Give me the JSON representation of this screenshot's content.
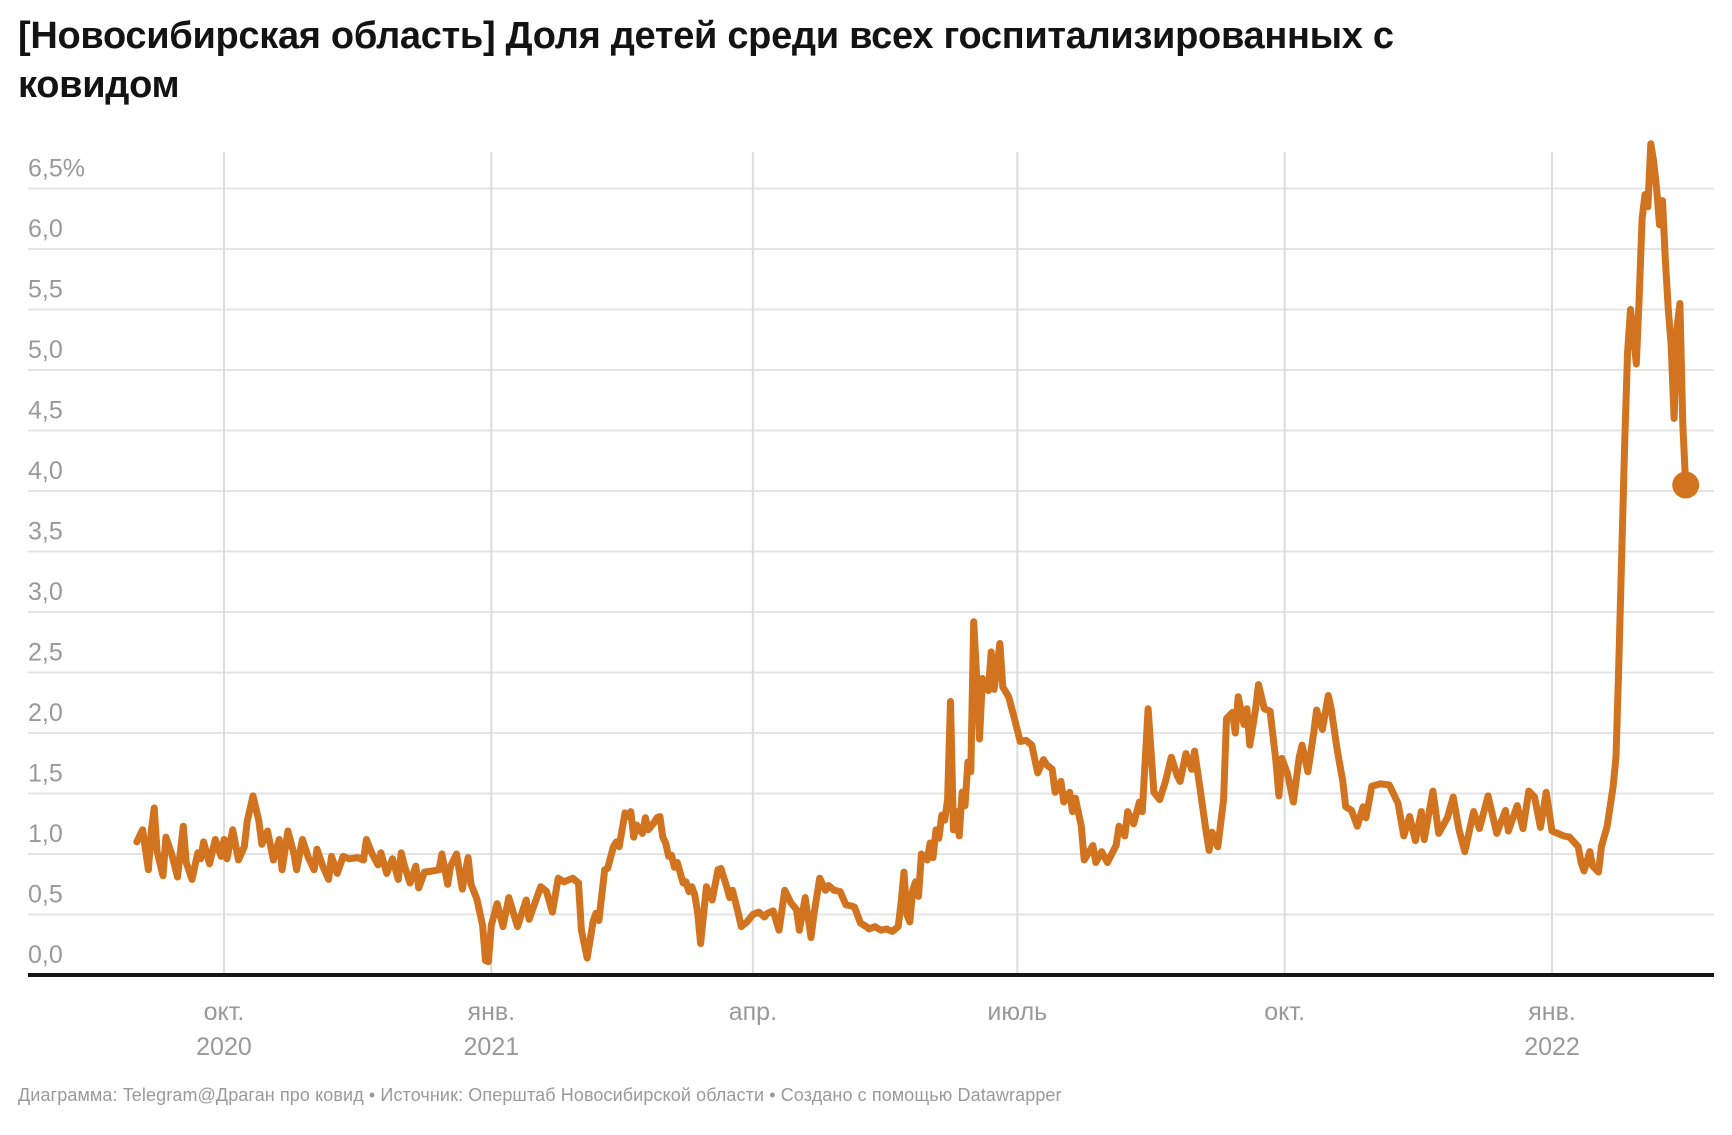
{
  "header": {
    "title": "[Новосибирская область] Доля детей среди всех госпитализированных с ковидом"
  },
  "footer": {
    "text": "Диаграмма: Telegram@Драган про ковид • Источник: Оперштаб Новосибирской области • Создано с помощью Datawrapper"
  },
  "chart_data": {
    "type": "line",
    "title": "[Новосибирская область] Доля детей среди всех госпитализированных с ковидом",
    "unit": "%",
    "ylim": [
      0,
      6.5
    ],
    "grid": true,
    "legend": "none",
    "colors": {
      "line": "#d1731f",
      "h_grid": "#e4e4e4",
      "v_grid": "#dcdcdc",
      "axis": "#161616",
      "tick_label": "#999999"
    },
    "y_ticks": [
      {
        "value": 0.0,
        "label": "0,0"
      },
      {
        "value": 0.5,
        "label": "0,5"
      },
      {
        "value": 1.0,
        "label": "1,0"
      },
      {
        "value": 1.5,
        "label": "1,5"
      },
      {
        "value": 2.0,
        "label": "2,0"
      },
      {
        "value": 2.5,
        "label": "2,5"
      },
      {
        "value": 3.0,
        "label": "3,0"
      },
      {
        "value": 3.5,
        "label": "3,5"
      },
      {
        "value": 4.0,
        "label": "4,0"
      },
      {
        "value": 4.5,
        "label": "4,5"
      },
      {
        "value": 5.0,
        "label": "5,0"
      },
      {
        "value": 5.5,
        "label": "5,5"
      },
      {
        "value": 6.0,
        "label": "6,0"
      },
      {
        "value": 6.5,
        "label": "6,5%"
      }
    ],
    "x_ticks": [
      {
        "date": "2020-10-01",
        "label": "окт.",
        "year": "2020"
      },
      {
        "date": "2021-01-01",
        "label": "янв.",
        "year": "2021"
      },
      {
        "date": "2021-04-01",
        "label": "апр.",
        "year": ""
      },
      {
        "date": "2021-07-01",
        "label": "июль",
        "year": ""
      },
      {
        "date": "2021-10-01",
        "label": "окт.",
        "year": ""
      },
      {
        "date": "2022-01-01",
        "label": "янв.",
        "year": "2022"
      }
    ],
    "x_range": [
      "2020-09-01",
      "2022-02-16"
    ],
    "end_dot": true,
    "points": [
      [
        "2020-09-01",
        1.1
      ],
      [
        "2020-09-03",
        1.2
      ],
      [
        "2020-09-05",
        0.87
      ],
      [
        "2020-09-06",
        1.19
      ],
      [
        "2020-09-07",
        1.38
      ],
      [
        "2020-09-08",
        1.02
      ],
      [
        "2020-09-10",
        0.82
      ],
      [
        "2020-09-11",
        1.14
      ],
      [
        "2020-09-13",
        1.0
      ],
      [
        "2020-09-15",
        0.81
      ],
      [
        "2020-09-17",
        1.23
      ],
      [
        "2020-09-18",
        0.93
      ],
      [
        "2020-09-20",
        0.79
      ],
      [
        "2020-09-22",
        1.01
      ],
      [
        "2020-09-23",
        0.96
      ],
      [
        "2020-09-24",
        1.1
      ],
      [
        "2020-09-26",
        0.92
      ],
      [
        "2020-09-28",
        1.12
      ],
      [
        "2020-09-30",
        0.98
      ],
      [
        "2020-10-01",
        1.12
      ],
      [
        "2020-10-02",
        0.96
      ],
      [
        "2020-10-04",
        1.2
      ],
      [
        "2020-10-06",
        0.95
      ],
      [
        "2020-10-08",
        1.06
      ],
      [
        "2020-10-09",
        1.27
      ],
      [
        "2020-10-11",
        1.48
      ],
      [
        "2020-10-13",
        1.27
      ],
      [
        "2020-10-14",
        1.08
      ],
      [
        "2020-10-16",
        1.19
      ],
      [
        "2020-10-18",
        0.95
      ],
      [
        "2020-10-20",
        1.12
      ],
      [
        "2020-10-21",
        0.87
      ],
      [
        "2020-10-23",
        1.19
      ],
      [
        "2020-10-25",
        1.01
      ],
      [
        "2020-10-26",
        0.87
      ],
      [
        "2020-10-28",
        1.12
      ],
      [
        "2020-10-30",
        0.97
      ],
      [
        "2020-11-01",
        0.87
      ],
      [
        "2020-11-02",
        1.04
      ],
      [
        "2020-11-04",
        0.9
      ],
      [
        "2020-11-06",
        0.79
      ],
      [
        "2020-11-07",
        0.98
      ],
      [
        "2020-11-09",
        0.84
      ],
      [
        "2020-11-11",
        0.98
      ],
      [
        "2020-11-13",
        0.96
      ],
      [
        "2020-11-16",
        0.97
      ],
      [
        "2020-11-18",
        0.95
      ],
      [
        "2020-11-19",
        1.12
      ],
      [
        "2020-11-21",
        1.0
      ],
      [
        "2020-11-23",
        0.91
      ],
      [
        "2020-11-24",
        1.01
      ],
      [
        "2020-11-26",
        0.84
      ],
      [
        "2020-11-28",
        0.96
      ],
      [
        "2020-11-30",
        0.79
      ],
      [
        "2020-12-01",
        1.01
      ],
      [
        "2020-12-02",
        0.91
      ],
      [
        "2020-12-04",
        0.76
      ],
      [
        "2020-12-06",
        0.9
      ],
      [
        "2020-12-07",
        0.72
      ],
      [
        "2020-12-09",
        0.85
      ],
      [
        "2020-12-12",
        0.86
      ],
      [
        "2020-12-14",
        0.87
      ],
      [
        "2020-12-15",
        1.0
      ],
      [
        "2020-12-17",
        0.75
      ],
      [
        "2020-12-18",
        0.9
      ],
      [
        "2020-12-20",
        1.0
      ],
      [
        "2020-12-22",
        0.71
      ],
      [
        "2020-12-24",
        0.97
      ],
      [
        "2020-12-25",
        0.75
      ],
      [
        "2020-12-27",
        0.63
      ],
      [
        "2020-12-29",
        0.41
      ],
      [
        "2020-12-30",
        0.12
      ],
      [
        "2020-12-31",
        0.11
      ],
      [
        "2021-01-01",
        0.41
      ],
      [
        "2021-01-03",
        0.59
      ],
      [
        "2021-01-05",
        0.4
      ],
      [
        "2021-01-07",
        0.64
      ],
      [
        "2021-01-10",
        0.4
      ],
      [
        "2021-01-13",
        0.62
      ],
      [
        "2021-01-14",
        0.46
      ],
      [
        "2021-01-18",
        0.73
      ],
      [
        "2021-01-20",
        0.69
      ],
      [
        "2021-01-22",
        0.52
      ],
      [
        "2021-01-24",
        0.8
      ],
      [
        "2021-01-26",
        0.77
      ],
      [
        "2021-01-29",
        0.8
      ],
      [
        "2021-01-31",
        0.76
      ],
      [
        "2021-02-01",
        0.37
      ],
      [
        "2021-02-03",
        0.14
      ],
      [
        "2021-02-05",
        0.44
      ],
      [
        "2021-02-06",
        0.51
      ],
      [
        "2021-02-07",
        0.45
      ],
      [
        "2021-02-09",
        0.87
      ],
      [
        "2021-02-10",
        0.88
      ],
      [
        "2021-02-12",
        1.06
      ],
      [
        "2021-02-13",
        1.1
      ],
      [
        "2021-02-14",
        1.06
      ],
      [
        "2021-02-16",
        1.34
      ],
      [
        "2021-02-17",
        1.31
      ],
      [
        "2021-02-18",
        1.35
      ],
      [
        "2021-02-19",
        1.14
      ],
      [
        "2021-02-20",
        1.24
      ],
      [
        "2021-02-22",
        1.17
      ],
      [
        "2021-02-23",
        1.3
      ],
      [
        "2021-02-24",
        1.2
      ],
      [
        "2021-02-26",
        1.26
      ],
      [
        "2021-02-27",
        1.3
      ],
      [
        "2021-02-28",
        1.31
      ],
      [
        "2021-03-01",
        1.14
      ],
      [
        "2021-03-02",
        1.09
      ],
      [
        "2021-03-03",
        0.98
      ],
      [
        "2021-03-04",
        0.99
      ],
      [
        "2021-03-05",
        0.89
      ],
      [
        "2021-03-06",
        0.93
      ],
      [
        "2021-03-08",
        0.76
      ],
      [
        "2021-03-09",
        0.77
      ],
      [
        "2021-03-10",
        0.69
      ],
      [
        "2021-03-11",
        0.73
      ],
      [
        "2021-03-12",
        0.66
      ],
      [
        "2021-03-13",
        0.51
      ],
      [
        "2021-03-14",
        0.26
      ],
      [
        "2021-03-16",
        0.73
      ],
      [
        "2021-03-18",
        0.62
      ],
      [
        "2021-03-20",
        0.87
      ],
      [
        "2021-03-21",
        0.88
      ],
      [
        "2021-03-23",
        0.73
      ],
      [
        "2021-03-24",
        0.64
      ],
      [
        "2021-03-25",
        0.7
      ],
      [
        "2021-03-27",
        0.51
      ],
      [
        "2021-03-28",
        0.4
      ],
      [
        "2021-03-30",
        0.44
      ],
      [
        "2021-04-01",
        0.5
      ],
      [
        "2021-04-03",
        0.52
      ],
      [
        "2021-04-05",
        0.48
      ],
      [
        "2021-04-06",
        0.51
      ],
      [
        "2021-04-08",
        0.53
      ],
      [
        "2021-04-10",
        0.37
      ],
      [
        "2021-04-12",
        0.7
      ],
      [
        "2021-04-14",
        0.6
      ],
      [
        "2021-04-16",
        0.54
      ],
      [
        "2021-04-17",
        0.37
      ],
      [
        "2021-04-19",
        0.64
      ],
      [
        "2021-04-21",
        0.31
      ],
      [
        "2021-04-22",
        0.5
      ],
      [
        "2021-04-24",
        0.8
      ],
      [
        "2021-04-26",
        0.7
      ],
      [
        "2021-04-27",
        0.74
      ],
      [
        "2021-04-29",
        0.7
      ],
      [
        "2021-05-01",
        0.69
      ],
      [
        "2021-05-03",
        0.58
      ],
      [
        "2021-05-05",
        0.57
      ],
      [
        "2021-05-06",
        0.56
      ],
      [
        "2021-05-08",
        0.43
      ],
      [
        "2021-05-10",
        0.4
      ],
      [
        "2021-05-11",
        0.38
      ],
      [
        "2021-05-13",
        0.4
      ],
      [
        "2021-05-15",
        0.37
      ],
      [
        "2021-05-17",
        0.38
      ],
      [
        "2021-05-19",
        0.36
      ],
      [
        "2021-05-21",
        0.4
      ],
      [
        "2021-05-22",
        0.6
      ],
      [
        "2021-05-23",
        0.85
      ],
      [
        "2021-05-24",
        0.5
      ],
      [
        "2021-05-25",
        0.44
      ],
      [
        "2021-05-26",
        0.7
      ],
      [
        "2021-05-27",
        0.77
      ],
      [
        "2021-05-28",
        0.65
      ],
      [
        "2021-05-29",
        1.0
      ],
      [
        "2021-05-31",
        0.95
      ],
      [
        "2021-06-01",
        1.09
      ],
      [
        "2021-06-02",
        0.97
      ],
      [
        "2021-06-03",
        1.2
      ],
      [
        "2021-06-04",
        1.13
      ],
      [
        "2021-06-05",
        1.32
      ],
      [
        "2021-06-06",
        1.28
      ],
      [
        "2021-06-07",
        1.45
      ],
      [
        "2021-06-08",
        2.26
      ],
      [
        "2021-06-09",
        1.2
      ],
      [
        "2021-06-10",
        1.35
      ],
      [
        "2021-06-11",
        1.15
      ],
      [
        "2021-06-12",
        1.51
      ],
      [
        "2021-06-13",
        1.4
      ],
      [
        "2021-06-14",
        1.76
      ],
      [
        "2021-06-15",
        1.68
      ],
      [
        "2021-06-16",
        2.92
      ],
      [
        "2021-06-17",
        2.47
      ],
      [
        "2021-06-18",
        1.95
      ],
      [
        "2021-06-19",
        2.45
      ],
      [
        "2021-06-21",
        2.35
      ],
      [
        "2021-06-22",
        2.67
      ],
      [
        "2021-06-23",
        2.36
      ],
      [
        "2021-06-25",
        2.74
      ],
      [
        "2021-06-26",
        2.38
      ],
      [
        "2021-06-28",
        2.3
      ],
      [
        "2021-06-30",
        2.12
      ],
      [
        "2021-07-02",
        1.93
      ],
      [
        "2021-07-04",
        1.94
      ],
      [
        "2021-07-06",
        1.9
      ],
      [
        "2021-07-08",
        1.67
      ],
      [
        "2021-07-10",
        1.78
      ],
      [
        "2021-07-11",
        1.74
      ],
      [
        "2021-07-13",
        1.7
      ],
      [
        "2021-07-14",
        1.51
      ],
      [
        "2021-07-16",
        1.6
      ],
      [
        "2021-07-17",
        1.43
      ],
      [
        "2021-07-19",
        1.51
      ],
      [
        "2021-07-20",
        1.35
      ],
      [
        "2021-07-21",
        1.46
      ],
      [
        "2021-07-23",
        1.23
      ],
      [
        "2021-07-24",
        0.95
      ],
      [
        "2021-07-27",
        1.07
      ],
      [
        "2021-07-28",
        0.93
      ],
      [
        "2021-07-30",
        1.02
      ],
      [
        "2021-08-01",
        0.93
      ],
      [
        "2021-08-04",
        1.07
      ],
      [
        "2021-08-05",
        1.23
      ],
      [
        "2021-08-07",
        1.15
      ],
      [
        "2021-08-08",
        1.35
      ],
      [
        "2021-08-10",
        1.25
      ],
      [
        "2021-08-12",
        1.43
      ],
      [
        "2021-08-13",
        1.35
      ],
      [
        "2021-08-15",
        2.2
      ],
      [
        "2021-08-17",
        1.51
      ],
      [
        "2021-08-19",
        1.45
      ],
      [
        "2021-08-21",
        1.6
      ],
      [
        "2021-08-23",
        1.8
      ],
      [
        "2021-08-25",
        1.65
      ],
      [
        "2021-08-26",
        1.6
      ],
      [
        "2021-08-28",
        1.83
      ],
      [
        "2021-08-30",
        1.7
      ],
      [
        "2021-08-31",
        1.85
      ],
      [
        "2021-09-02",
        1.52
      ],
      [
        "2021-09-04",
        1.18
      ],
      [
        "2021-09-05",
        1.03
      ],
      [
        "2021-09-06",
        1.18
      ],
      [
        "2021-09-08",
        1.06
      ],
      [
        "2021-09-10",
        1.45
      ],
      [
        "2021-09-11",
        2.12
      ],
      [
        "2021-09-13",
        2.17
      ],
      [
        "2021-09-14",
        2.0
      ],
      [
        "2021-09-15",
        2.3
      ],
      [
        "2021-09-17",
        2.07
      ],
      [
        "2021-09-18",
        2.2
      ],
      [
        "2021-09-19",
        1.9
      ],
      [
        "2021-09-21",
        2.2
      ],
      [
        "2021-09-22",
        2.4
      ],
      [
        "2021-09-24",
        2.2
      ],
      [
        "2021-09-26",
        2.18
      ],
      [
        "2021-09-28",
        1.76
      ],
      [
        "2021-09-29",
        1.48
      ],
      [
        "2021-09-30",
        1.79
      ],
      [
        "2021-10-02",
        1.66
      ],
      [
        "2021-10-04",
        1.43
      ],
      [
        "2021-10-06",
        1.8
      ],
      [
        "2021-10-07",
        1.9
      ],
      [
        "2021-10-09",
        1.68
      ],
      [
        "2021-10-11",
        2.0
      ],
      [
        "2021-10-12",
        2.19
      ],
      [
        "2021-10-14",
        2.03
      ],
      [
        "2021-10-16",
        2.31
      ],
      [
        "2021-10-17",
        2.2
      ],
      [
        "2021-10-19",
        1.87
      ],
      [
        "2021-10-21",
        1.6
      ],
      [
        "2021-10-22",
        1.39
      ],
      [
        "2021-10-24",
        1.36
      ],
      [
        "2021-10-26",
        1.23
      ],
      [
        "2021-10-28",
        1.39
      ],
      [
        "2021-10-29",
        1.3
      ],
      [
        "2021-10-31",
        1.56
      ],
      [
        "2021-11-03",
        1.58
      ],
      [
        "2021-11-06",
        1.57
      ],
      [
        "2021-11-09",
        1.42
      ],
      [
        "2021-11-11",
        1.15
      ],
      [
        "2021-11-13",
        1.31
      ],
      [
        "2021-11-15",
        1.11
      ],
      [
        "2021-11-17",
        1.35
      ],
      [
        "2021-11-18",
        1.12
      ],
      [
        "2021-11-21",
        1.52
      ],
      [
        "2021-11-23",
        1.17
      ],
      [
        "2021-11-26",
        1.3
      ],
      [
        "2021-11-28",
        1.47
      ],
      [
        "2021-11-30",
        1.2
      ],
      [
        "2021-12-02",
        1.02
      ],
      [
        "2021-12-05",
        1.35
      ],
      [
        "2021-12-07",
        1.21
      ],
      [
        "2021-12-10",
        1.48
      ],
      [
        "2021-12-13",
        1.17
      ],
      [
        "2021-12-16",
        1.36
      ],
      [
        "2021-12-17",
        1.19
      ],
      [
        "2021-12-20",
        1.4
      ],
      [
        "2021-12-22",
        1.21
      ],
      [
        "2021-12-24",
        1.52
      ],
      [
        "2021-12-26",
        1.47
      ],
      [
        "2021-12-28",
        1.22
      ],
      [
        "2021-12-30",
        1.51
      ],
      [
        "2022-01-01",
        1.19
      ],
      [
        "2022-01-04",
        1.16
      ],
      [
        "2022-01-05",
        1.15
      ],
      [
        "2022-01-07",
        1.14
      ],
      [
        "2022-01-10",
        1.06
      ],
      [
        "2022-01-11",
        0.93
      ],
      [
        "2022-01-12",
        0.86
      ],
      [
        "2022-01-14",
        1.02
      ],
      [
        "2022-01-15",
        0.9
      ],
      [
        "2022-01-17",
        0.85
      ],
      [
        "2022-01-18",
        1.06
      ],
      [
        "2022-01-20",
        1.23
      ],
      [
        "2022-01-22",
        1.55
      ],
      [
        "2022-01-23",
        1.8
      ],
      [
        "2022-01-24",
        2.6
      ],
      [
        "2022-01-25",
        3.5
      ],
      [
        "2022-01-26",
        4.4
      ],
      [
        "2022-01-27",
        5.15
      ],
      [
        "2022-01-28",
        5.5
      ],
      [
        "2022-01-29",
        5.3
      ],
      [
        "2022-01-30",
        5.05
      ],
      [
        "2022-01-31",
        5.6
      ],
      [
        "2022-02-01",
        6.25
      ],
      [
        "2022-02-02",
        6.45
      ],
      [
        "2022-02-03",
        6.35
      ],
      [
        "2022-02-04",
        6.87
      ],
      [
        "2022-02-05",
        6.72
      ],
      [
        "2022-02-06",
        6.5
      ],
      [
        "2022-02-07",
        6.2
      ],
      [
        "2022-02-08",
        6.4
      ],
      [
        "2022-02-09",
        5.9
      ],
      [
        "2022-02-10",
        5.5
      ],
      [
        "2022-02-11",
        5.2
      ],
      [
        "2022-02-12",
        4.6
      ],
      [
        "2022-02-13",
        5.35
      ],
      [
        "2022-02-14",
        5.55
      ],
      [
        "2022-02-15",
        4.55
      ],
      [
        "2022-02-16",
        4.05
      ]
    ]
  }
}
